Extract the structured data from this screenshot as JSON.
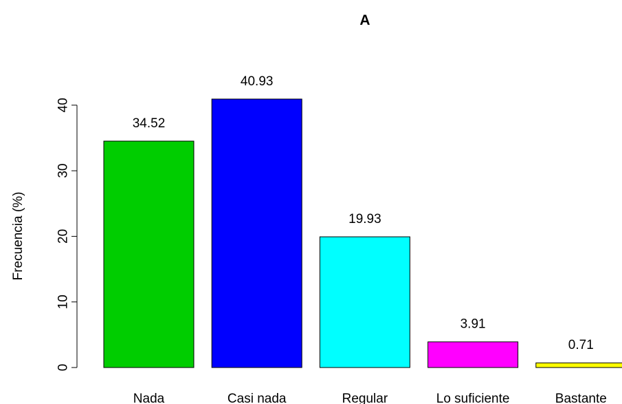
{
  "chart_data": {
    "type": "bar",
    "title": "A",
    "xlabel": "",
    "ylabel": "Frecuencia (%)",
    "categories": [
      "Nada",
      "Casi nada",
      "Regular",
      "Lo suficiente",
      "Bastante"
    ],
    "values": [
      34.52,
      40.93,
      19.93,
      3.91,
      0.71
    ],
    "value_labels": [
      "34.52",
      "40.93",
      "19.93",
      "3.91",
      "0.71"
    ],
    "colors": [
      "#00cd00",
      "#0000ff",
      "#00ffff",
      "#ff00ff",
      "#ffff00"
    ],
    "yticks": [
      0,
      10,
      20,
      30,
      40
    ],
    "ytick_labels": [
      "0",
      "10",
      "20",
      "30",
      "40"
    ],
    "ylim": [
      0,
      50
    ],
    "grid": false,
    "legend": "none"
  }
}
